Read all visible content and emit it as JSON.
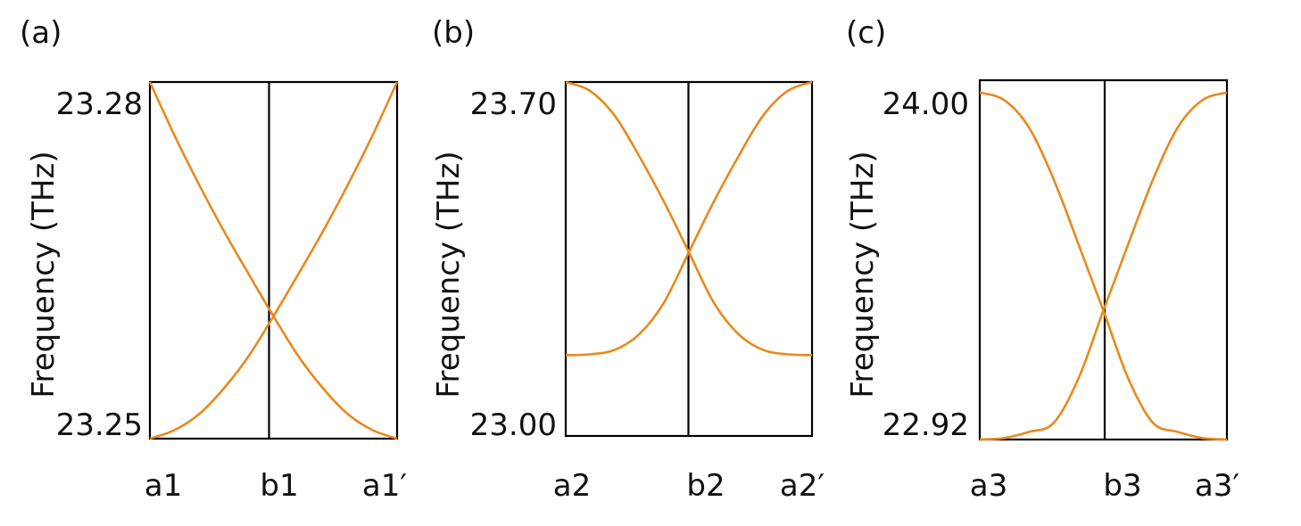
{
  "figure": {
    "line_color": "#e8891d",
    "axis_color": "#000000"
  },
  "chart_data": [
    {
      "panel_label": "(a)",
      "type": "line",
      "xlabel": "",
      "ylabel": "Frequency (THz)",
      "x_ticks": [
        "a1",
        "b1",
        "a1′"
      ],
      "y_ticks": [
        "23.28",
        "23.25"
      ],
      "y_tick_values": [
        23.28,
        23.25
      ],
      "ylim": [
        23.2486,
        23.2818
      ],
      "x": [
        0,
        0.1,
        0.2,
        0.3,
        0.4,
        0.5,
        0.6,
        0.7,
        0.8,
        0.9,
        1
      ],
      "series": [
        {
          "values": [
            23.2818,
            23.2768,
            23.2722,
            23.2679,
            23.2639,
            23.26,
            23.2563,
            23.2533,
            23.2509,
            23.2494,
            23.2486
          ]
        },
        {
          "values": [
            23.2486,
            23.2494,
            23.2509,
            23.2533,
            23.2563,
            23.26,
            23.2639,
            23.2679,
            23.2722,
            23.2768,
            23.2818
          ]
        }
      ]
    },
    {
      "panel_label": "(b)",
      "type": "line",
      "xlabel": "",
      "ylabel": "Frequency (THz)",
      "x_ticks": [
        "a2",
        "b2",
        "a2′"
      ],
      "y_ticks": [
        "23.70",
        "23.00"
      ],
      "y_tick_values": [
        23.7,
        23.0
      ],
      "ylim": [
        22.975,
        23.755
      ],
      "x": [
        0,
        0.1,
        0.2,
        0.3,
        0.4,
        0.5,
        0.6,
        0.7,
        0.8,
        0.9,
        1
      ],
      "series": [
        {
          "values": [
            23.755,
            23.735,
            23.68,
            23.59,
            23.49,
            23.38,
            23.27,
            23.2,
            23.165,
            23.155,
            23.153
          ]
        },
        {
          "values": [
            23.153,
            23.155,
            23.165,
            23.2,
            23.27,
            23.38,
            23.49,
            23.59,
            23.68,
            23.735,
            23.755
          ]
        }
      ]
    },
    {
      "panel_label": "(c)",
      "type": "line",
      "xlabel": "",
      "ylabel": "Frequency (THz)",
      "x_ticks": [
        "a3",
        "b3",
        "a3′"
      ],
      "y_ticks": [
        "24.00",
        "22.92"
      ],
      "y_tick_values": [
        24.0,
        22.92
      ],
      "ylim": [
        22.915,
        24.085
      ],
      "x": [
        0,
        0.1,
        0.2,
        0.3,
        0.4,
        0.5,
        0.6,
        0.7,
        0.8,
        0.9,
        1
      ],
      "series": [
        {
          "values": [
            24.045,
            24.02,
            23.93,
            23.76,
            23.55,
            23.335,
            23.115,
            22.97,
            22.94,
            22.92,
            22.915
          ]
        },
        {
          "values": [
            22.915,
            22.92,
            22.94,
            22.97,
            23.115,
            23.335,
            23.55,
            23.76,
            23.93,
            24.02,
            24.045
          ]
        }
      ]
    }
  ]
}
